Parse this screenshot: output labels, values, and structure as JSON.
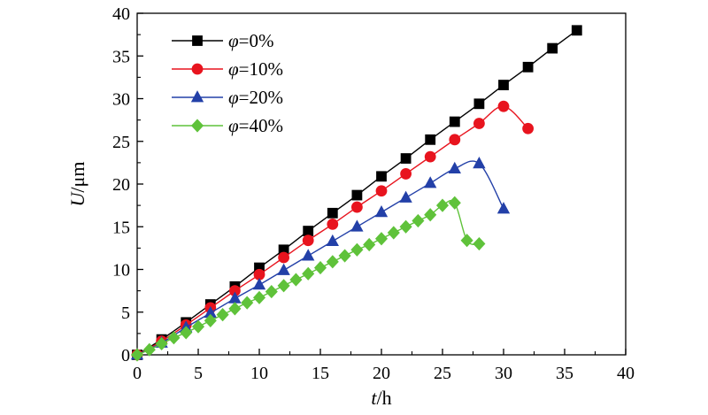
{
  "chart_data": {
    "type": "line",
    "xlabel": {
      "var": "t",
      "unit": "/h"
    },
    "ylabel": {
      "var": "U",
      "unit": "/μm"
    },
    "xlim": [
      0,
      40
    ],
    "ylim": [
      0,
      40
    ],
    "xticks": [
      0,
      5,
      10,
      15,
      20,
      25,
      30,
      35,
      40
    ],
    "yticks": [
      0,
      5,
      10,
      15,
      20,
      25,
      30,
      35,
      40
    ],
    "grid": false,
    "legend_position": "top-left",
    "series": [
      {
        "name": "φ=0%",
        "label_var": "φ",
        "label_value": "=0%",
        "color": "#000000",
        "marker": "square",
        "x": [
          0,
          2,
          4,
          6,
          8,
          10,
          12,
          14,
          16,
          18,
          20,
          22,
          24,
          26,
          28,
          30,
          32,
          34,
          36
        ],
        "y": [
          0,
          1.8,
          3.8,
          5.9,
          8.0,
          10.2,
          12.3,
          14.5,
          16.6,
          18.7,
          20.9,
          23.0,
          25.2,
          27.3,
          29.4,
          31.6,
          33.7,
          35.9,
          38.0
        ]
      },
      {
        "name": "φ=10%",
        "label_var": "φ",
        "label_value": "=10%",
        "color": "#e8141e",
        "marker": "circle",
        "x": [
          0,
          2,
          4,
          6,
          8,
          10,
          12,
          14,
          16,
          18,
          20,
          22,
          24,
          26,
          28,
          30,
          32
        ],
        "y": [
          0,
          1.6,
          3.5,
          5.5,
          7.5,
          9.4,
          11.4,
          13.4,
          15.3,
          17.3,
          19.2,
          21.2,
          23.2,
          25.2,
          27.1,
          29.1,
          26.5
        ]
      },
      {
        "name": "φ=20%",
        "label_var": "φ",
        "label_value": "=20%",
        "color": "#2340a8",
        "marker": "triangle",
        "x": [
          0,
          2,
          4,
          6,
          8,
          10,
          12,
          14,
          16,
          18,
          20,
          22,
          24,
          26,
          28,
          30
        ],
        "y": [
          0,
          1.4,
          3.2,
          4.9,
          6.6,
          8.2,
          9.9,
          11.6,
          13.3,
          15.0,
          16.7,
          18.4,
          20.1,
          21.8,
          22.4,
          17.1
        ]
      },
      {
        "name": "φ=40%",
        "label_var": "φ",
        "label_value": "=40%",
        "color": "#5fc23a",
        "marker": "diamond",
        "x": [
          0,
          1,
          2,
          3,
          4,
          5,
          6,
          7,
          8,
          9,
          10,
          11,
          12,
          13,
          14,
          15,
          16,
          17,
          18,
          19,
          20,
          21,
          22,
          23,
          24,
          25,
          26,
          27,
          28
        ],
        "y": [
          0,
          0.6,
          1.3,
          2.0,
          2.6,
          3.3,
          4.0,
          4.7,
          5.4,
          6.1,
          6.7,
          7.4,
          8.1,
          8.8,
          9.5,
          10.2,
          10.9,
          11.6,
          12.3,
          12.9,
          13.6,
          14.3,
          15.0,
          15.7,
          16.4,
          17.5,
          17.8,
          13.4,
          13.0
        ]
      }
    ]
  }
}
